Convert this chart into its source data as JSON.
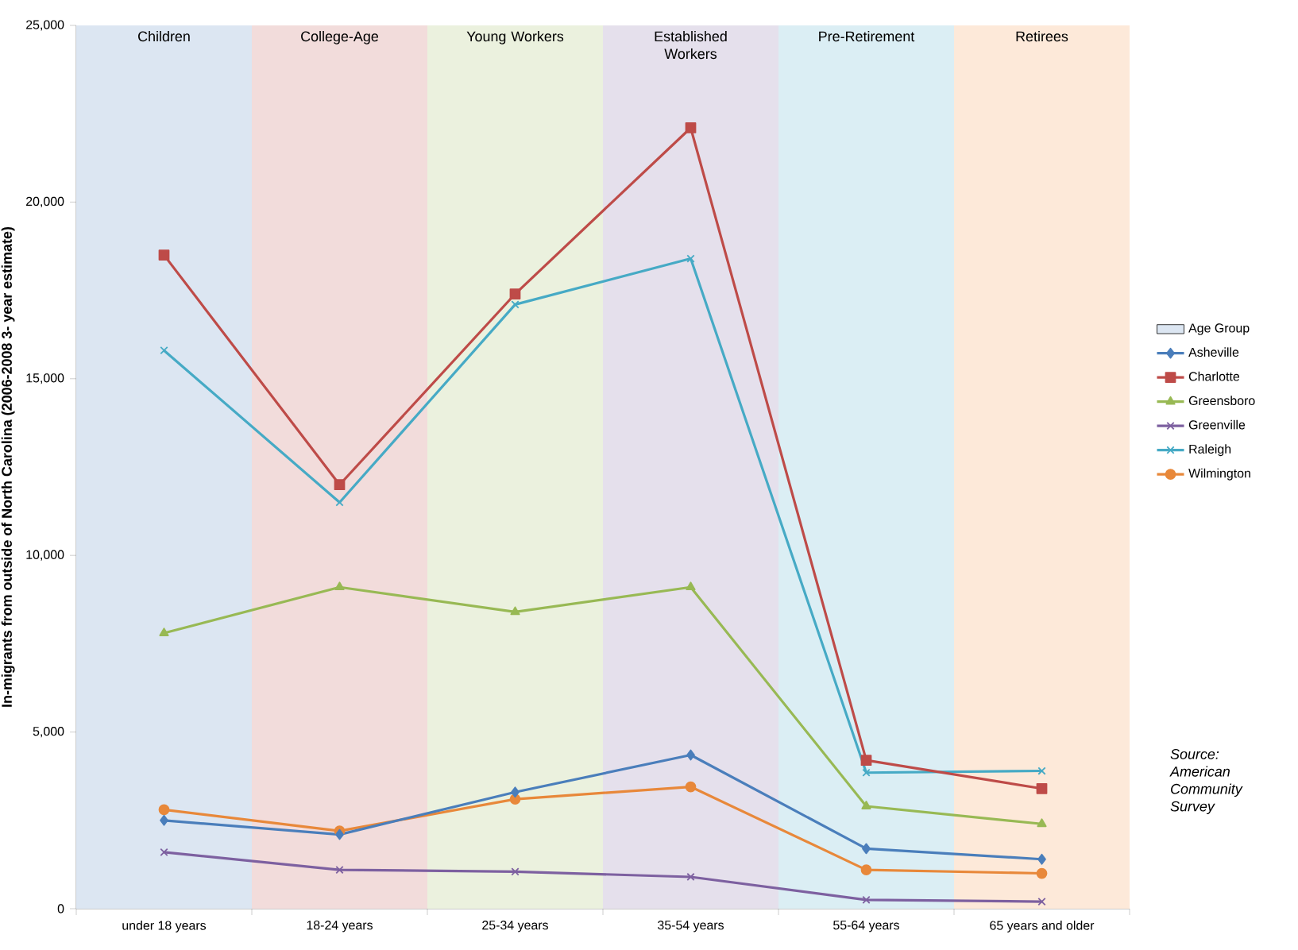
{
  "chart_data": {
    "type": "line",
    "ylabel": "In-migrants from outside of North Carolina (2006-2008 3- year estimate)",
    "categories": [
      "under 18 years",
      "18-24 years",
      "25-34 years",
      "35-54 years",
      "55-64 years",
      "65 years and older"
    ],
    "ylim": [
      0,
      25000
    ],
    "yticks": [
      {
        "value": 0,
        "label": "0"
      },
      {
        "value": 5000,
        "label": "5,000"
      },
      {
        "value": 10000,
        "label": "10,000"
      },
      {
        "value": 15000,
        "label": "15,000"
      },
      {
        "value": 20000,
        "label": "20,000"
      },
      {
        "value": 25000,
        "label": "25,000"
      }
    ],
    "legend": "right",
    "series": [
      {
        "name": "Age Group",
        "type": "bar",
        "colors": [
          "#dce6f2",
          "#f2dcdb",
          "#ebf1de",
          "#e5e0ec",
          "#dbeef4",
          "#fde9d9"
        ],
        "values": [
          25000,
          25000,
          25000,
          25000,
          25000,
          25000
        ],
        "value_labels": [
          "Children",
          "College-Age",
          "Young Workers",
          "Established Workers",
          "Pre-Retirement",
          "Retirees"
        ]
      },
      {
        "name": "Asheville",
        "color": "#4a7ebb",
        "marker": "diamond",
        "values": [
          2500,
          2100,
          3300,
          4350,
          1700,
          1400
        ]
      },
      {
        "name": "Charlotte",
        "color": "#be4b48",
        "marker": "square",
        "values": [
          18500,
          12000,
          17400,
          22100,
          4200,
          3400
        ]
      },
      {
        "name": "Greensboro",
        "color": "#98b954",
        "marker": "triangle",
        "values": [
          7800,
          9100,
          8400,
          9100,
          2900,
          2400
        ]
      },
      {
        "name": "Greenville",
        "color": "#7d60a0",
        "marker": "cross",
        "values": [
          1600,
          1100,
          1050,
          900,
          250,
          200
        ]
      },
      {
        "name": "Raleigh",
        "color": "#46aac5",
        "marker": "cross",
        "values": [
          15800,
          11500,
          17100,
          18400,
          3850,
          3900
        ]
      },
      {
        "name": "Wilmington",
        "color": "#e8883a",
        "marker": "circle",
        "values": [
          2800,
          2200,
          3100,
          3450,
          1100,
          1000
        ]
      }
    ],
    "annotations": [
      "Source: American Community Survey"
    ]
  }
}
